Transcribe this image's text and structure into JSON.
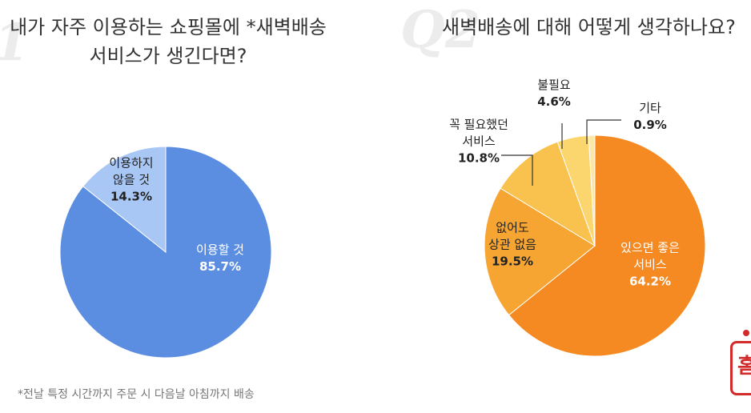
{
  "q1": {
    "number": "1",
    "title_line1": "내가 자주 이용하는 쇼핑몰에 *새벽배송",
    "title_line2": "서비스가 생긴다면?"
  },
  "q2": {
    "number": "Q2",
    "title": "새벽배송에 대해 어떻게 생각하나요?"
  },
  "footnote": "*전날 특정 시간까지 주문 시 다음날 아침까지 배송",
  "stamp": {
    "glyph": "홈"
  },
  "chart_data": [
    {
      "type": "pie",
      "title": "내가 자주 이용하는 쇼핑몰에 *새벽배송 서비스가 생긴다면?",
      "slices": [
        {
          "label_lines": [
            "이용할 것"
          ],
          "value": 85.7,
          "value_label": "85.7%",
          "color": "#5b8ee0"
        },
        {
          "label_lines": [
            "이용하지",
            "않을 것"
          ],
          "value": 14.3,
          "value_label": "14.3%",
          "color": "#a9c7f5"
        }
      ]
    },
    {
      "type": "pie",
      "title": "새벽배송에 대해 어떻게 생각하나요?",
      "slices": [
        {
          "label_lines": [
            "있으면 좋은",
            "서비스"
          ],
          "value": 64.2,
          "value_label": "64.2%",
          "color": "#f58a22"
        },
        {
          "label_lines": [
            "없어도",
            "상관 없음"
          ],
          "value": 19.5,
          "value_label": "19.5%",
          "color": "#f7a532"
        },
        {
          "label_lines": [
            "꼭 필요했던",
            "서비스"
          ],
          "value": 10.8,
          "value_label": "10.8%",
          "color": "#f9c24e"
        },
        {
          "label_lines": [
            "불필요"
          ],
          "value": 4.6,
          "value_label": "4.6%",
          "color": "#fbd56e"
        },
        {
          "label_lines": [
            "기타"
          ],
          "value": 0.9,
          "value_label": "0.9%",
          "color": "#fde7a6"
        }
      ]
    }
  ]
}
